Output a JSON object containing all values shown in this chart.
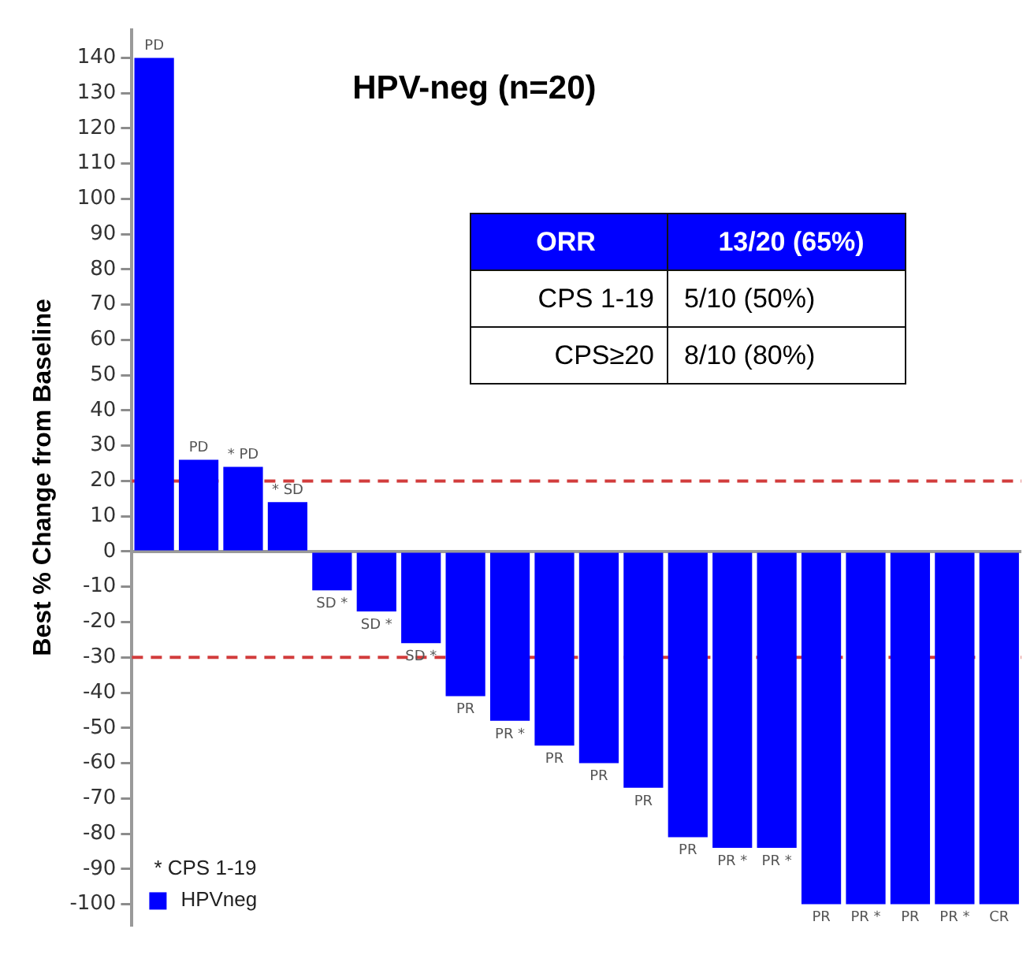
{
  "chart_data": {
    "type": "bar",
    "title": "HPV-neg (n=20)",
    "ylabel": "Best % Change from Baseline",
    "categories": [
      null,
      null,
      null,
      null,
      null,
      null,
      null,
      null,
      null,
      null,
      null,
      null,
      null,
      null,
      null,
      null,
      null,
      null,
      null,
      null
    ],
    "series": [
      {
        "name": "HPVneg",
        "color": "#0000ff",
        "values": [
          140,
          26,
          24,
          14,
          -11,
          -17,
          -26,
          -41,
          -48,
          -55,
          -60,
          -67,
          -81,
          -84,
          -84,
          -100,
          -100,
          -100,
          -100,
          -100
        ],
        "value_labels": [
          "PD",
          "PD",
          "* PD",
          "* SD",
          "SD *",
          "SD *",
          "SD *",
          "PR",
          "PR *",
          "PR",
          "PR",
          "PR",
          "PR",
          "PR *",
          "PR *",
          "PR",
          "PR *",
          "PR",
          "PR *",
          "CR"
        ]
      }
    ],
    "ylim": [
      -106,
      148
    ],
    "yticks": [
      -100,
      -90,
      -80,
      -70,
      -60,
      -50,
      -40,
      -30,
      -20,
      -10,
      0,
      10,
      20,
      30,
      40,
      50,
      60,
      70,
      80,
      90,
      100,
      110,
      120,
      130,
      140
    ],
    "ref_lines": [
      {
        "axis": "y",
        "value": 20,
        "color": "#d23c3c",
        "line_style": "dashed"
      },
      {
        "axis": "y",
        "value": -30,
        "color": "#d23c3c",
        "line_style": "dashed"
      }
    ],
    "legend": "bottom left",
    "tick_labels": "y",
    "annotations": [
      "ORR",
      "13/20 (65%)",
      "CPS 1-19",
      "5/10 (50%)",
      "CPS≥20",
      "8/10 (80%)",
      "* CPS 1-19"
    ]
  }
}
